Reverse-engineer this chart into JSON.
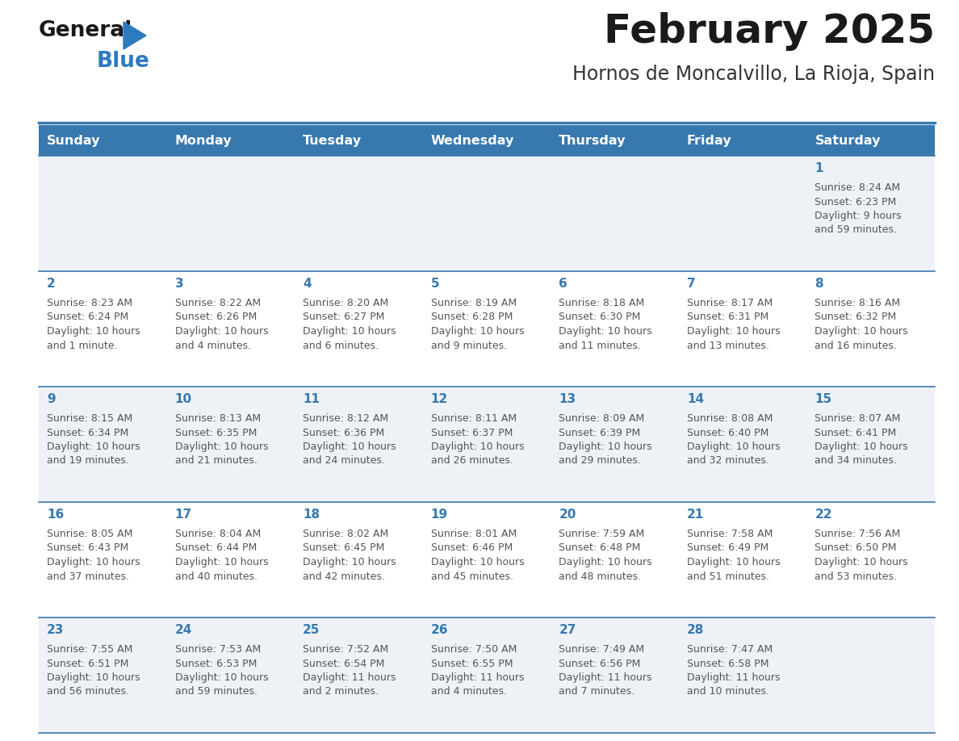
{
  "title": "February 2025",
  "subtitle": "Hornos de Moncalvillo, La Rioja, Spain",
  "header_bg_color": "#3778ae",
  "header_text_color": "#ffffff",
  "day_headers": [
    "Sunday",
    "Monday",
    "Tuesday",
    "Wednesday",
    "Thursday",
    "Friday",
    "Saturday"
  ],
  "row_bg_even": "#eef2f6",
  "row_bg_odd": "#ffffff",
  "cell_border_color": "#3778ae",
  "day_num_color": "#3778ae",
  "text_color": "#555555",
  "logo_general_color": "#1a1a1a",
  "logo_blue_color": "#2d7abf",
  "days": [
    {
      "date": 1,
      "col": 6,
      "row": 0,
      "sunrise": "8:24 AM",
      "sunset": "6:23 PM",
      "daylight_line1": "Daylight: 9 hours",
      "daylight_line2": "and 59 minutes."
    },
    {
      "date": 2,
      "col": 0,
      "row": 1,
      "sunrise": "8:23 AM",
      "sunset": "6:24 PM",
      "daylight_line1": "Daylight: 10 hours",
      "daylight_line2": "and 1 minute."
    },
    {
      "date": 3,
      "col": 1,
      "row": 1,
      "sunrise": "8:22 AM",
      "sunset": "6:26 PM",
      "daylight_line1": "Daylight: 10 hours",
      "daylight_line2": "and 4 minutes."
    },
    {
      "date": 4,
      "col": 2,
      "row": 1,
      "sunrise": "8:20 AM",
      "sunset": "6:27 PM",
      "daylight_line1": "Daylight: 10 hours",
      "daylight_line2": "and 6 minutes."
    },
    {
      "date": 5,
      "col": 3,
      "row": 1,
      "sunrise": "8:19 AM",
      "sunset": "6:28 PM",
      "daylight_line1": "Daylight: 10 hours",
      "daylight_line2": "and 9 minutes."
    },
    {
      "date": 6,
      "col": 4,
      "row": 1,
      "sunrise": "8:18 AM",
      "sunset": "6:30 PM",
      "daylight_line1": "Daylight: 10 hours",
      "daylight_line2": "and 11 minutes."
    },
    {
      "date": 7,
      "col": 5,
      "row": 1,
      "sunrise": "8:17 AM",
      "sunset": "6:31 PM",
      "daylight_line1": "Daylight: 10 hours",
      "daylight_line2": "and 13 minutes."
    },
    {
      "date": 8,
      "col": 6,
      "row": 1,
      "sunrise": "8:16 AM",
      "sunset": "6:32 PM",
      "daylight_line1": "Daylight: 10 hours",
      "daylight_line2": "and 16 minutes."
    },
    {
      "date": 9,
      "col": 0,
      "row": 2,
      "sunrise": "8:15 AM",
      "sunset": "6:34 PM",
      "daylight_line1": "Daylight: 10 hours",
      "daylight_line2": "and 19 minutes."
    },
    {
      "date": 10,
      "col": 1,
      "row": 2,
      "sunrise": "8:13 AM",
      "sunset": "6:35 PM",
      "daylight_line1": "Daylight: 10 hours",
      "daylight_line2": "and 21 minutes."
    },
    {
      "date": 11,
      "col": 2,
      "row": 2,
      "sunrise": "8:12 AM",
      "sunset": "6:36 PM",
      "daylight_line1": "Daylight: 10 hours",
      "daylight_line2": "and 24 minutes."
    },
    {
      "date": 12,
      "col": 3,
      "row": 2,
      "sunrise": "8:11 AM",
      "sunset": "6:37 PM",
      "daylight_line1": "Daylight: 10 hours",
      "daylight_line2": "and 26 minutes."
    },
    {
      "date": 13,
      "col": 4,
      "row": 2,
      "sunrise": "8:09 AM",
      "sunset": "6:39 PM",
      "daylight_line1": "Daylight: 10 hours",
      "daylight_line2": "and 29 minutes."
    },
    {
      "date": 14,
      "col": 5,
      "row": 2,
      "sunrise": "8:08 AM",
      "sunset": "6:40 PM",
      "daylight_line1": "Daylight: 10 hours",
      "daylight_line2": "and 32 minutes."
    },
    {
      "date": 15,
      "col": 6,
      "row": 2,
      "sunrise": "8:07 AM",
      "sunset": "6:41 PM",
      "daylight_line1": "Daylight: 10 hours",
      "daylight_line2": "and 34 minutes."
    },
    {
      "date": 16,
      "col": 0,
      "row": 3,
      "sunrise": "8:05 AM",
      "sunset": "6:43 PM",
      "daylight_line1": "Daylight: 10 hours",
      "daylight_line2": "and 37 minutes."
    },
    {
      "date": 17,
      "col": 1,
      "row": 3,
      "sunrise": "8:04 AM",
      "sunset": "6:44 PM",
      "daylight_line1": "Daylight: 10 hours",
      "daylight_line2": "and 40 minutes."
    },
    {
      "date": 18,
      "col": 2,
      "row": 3,
      "sunrise": "8:02 AM",
      "sunset": "6:45 PM",
      "daylight_line1": "Daylight: 10 hours",
      "daylight_line2": "and 42 minutes."
    },
    {
      "date": 19,
      "col": 3,
      "row": 3,
      "sunrise": "8:01 AM",
      "sunset": "6:46 PM",
      "daylight_line1": "Daylight: 10 hours",
      "daylight_line2": "and 45 minutes."
    },
    {
      "date": 20,
      "col": 4,
      "row": 3,
      "sunrise": "7:59 AM",
      "sunset": "6:48 PM",
      "daylight_line1": "Daylight: 10 hours",
      "daylight_line2": "and 48 minutes."
    },
    {
      "date": 21,
      "col": 5,
      "row": 3,
      "sunrise": "7:58 AM",
      "sunset": "6:49 PM",
      "daylight_line1": "Daylight: 10 hours",
      "daylight_line2": "and 51 minutes."
    },
    {
      "date": 22,
      "col": 6,
      "row": 3,
      "sunrise": "7:56 AM",
      "sunset": "6:50 PM",
      "daylight_line1": "Daylight: 10 hours",
      "daylight_line2": "and 53 minutes."
    },
    {
      "date": 23,
      "col": 0,
      "row": 4,
      "sunrise": "7:55 AM",
      "sunset": "6:51 PM",
      "daylight_line1": "Daylight: 10 hours",
      "daylight_line2": "and 56 minutes."
    },
    {
      "date": 24,
      "col": 1,
      "row": 4,
      "sunrise": "7:53 AM",
      "sunset": "6:53 PM",
      "daylight_line1": "Daylight: 10 hours",
      "daylight_line2": "and 59 minutes."
    },
    {
      "date": 25,
      "col": 2,
      "row": 4,
      "sunrise": "7:52 AM",
      "sunset": "6:54 PM",
      "daylight_line1": "Daylight: 11 hours",
      "daylight_line2": "and 2 minutes."
    },
    {
      "date": 26,
      "col": 3,
      "row": 4,
      "sunrise": "7:50 AM",
      "sunset": "6:55 PM",
      "daylight_line1": "Daylight: 11 hours",
      "daylight_line2": "and 4 minutes."
    },
    {
      "date": 27,
      "col": 4,
      "row": 4,
      "sunrise": "7:49 AM",
      "sunset": "6:56 PM",
      "daylight_line1": "Daylight: 11 hours",
      "daylight_line2": "and 7 minutes."
    },
    {
      "date": 28,
      "col": 5,
      "row": 4,
      "sunrise": "7:47 AM",
      "sunset": "6:58 PM",
      "daylight_line1": "Daylight: 11 hours",
      "daylight_line2": "and 10 minutes."
    }
  ]
}
